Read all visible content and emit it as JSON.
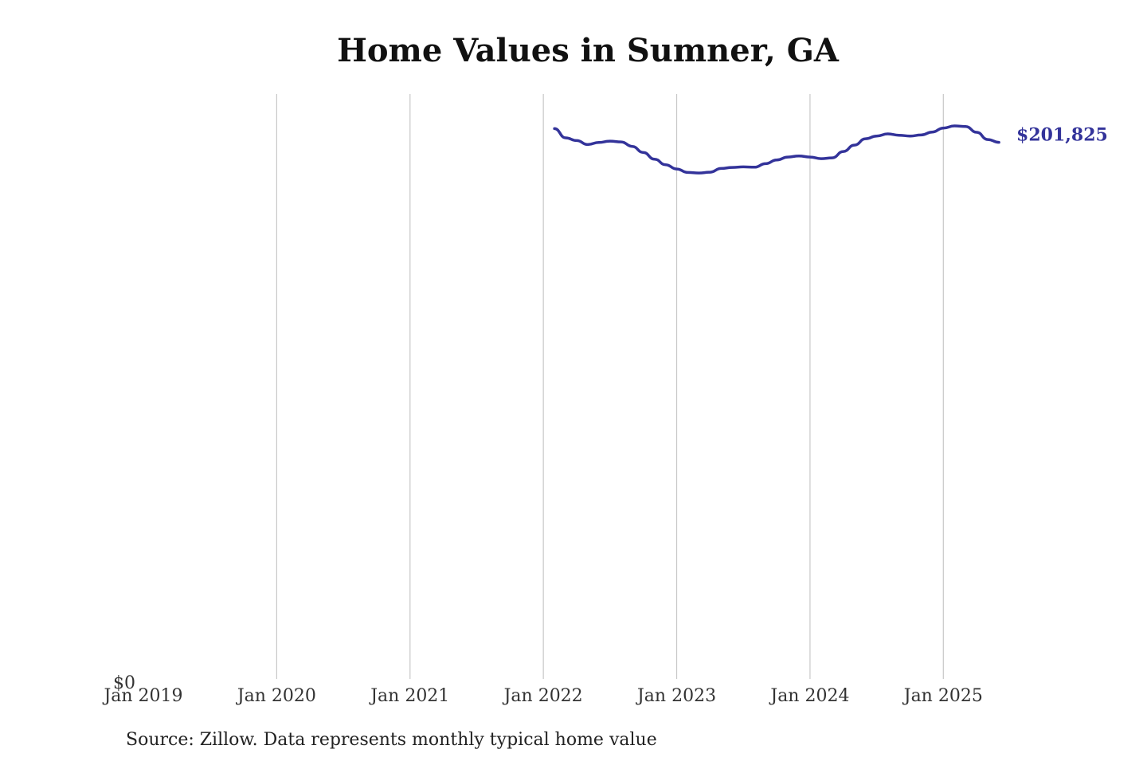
{
  "chart_data": {
    "type": "line",
    "title": "Home Values in Sumner, GA",
    "xlabel": "",
    "ylabel": "",
    "x_ticks": [
      "Jan 2019",
      "Jan 2020",
      "Jan 2021",
      "Jan 2022",
      "Jan 2023",
      "Jan 2024",
      "Jan 2025"
    ],
    "y_ticks": [
      "$0"
    ],
    "xlim": [
      "2019-01",
      "2025-07"
    ],
    "ylim": [
      0,
      220000
    ],
    "grid": "vertical",
    "end_label": "$201,825",
    "line_color": "#33339a",
    "series": [
      {
        "x": [
          "2022-02",
          "2022-03",
          "2022-04",
          "2022-05",
          "2022-06",
          "2022-07",
          "2022-08",
          "2022-09",
          "2022-10",
          "2022-11",
          "2022-12",
          "2023-01",
          "2023-02",
          "2023-03",
          "2023-04",
          "2023-05",
          "2023-06",
          "2023-07",
          "2023-08",
          "2023-09",
          "2023-10",
          "2023-11",
          "2023-12",
          "2024-01",
          "2024-02",
          "2024-03",
          "2024-04",
          "2024-05",
          "2024-06",
          "2024-07",
          "2024-08",
          "2024-09",
          "2024-10",
          "2024-11",
          "2024-12",
          "2025-01",
          "2025-02",
          "2025-03",
          "2025-04",
          "2025-05",
          "2025-06"
        ],
        "y": [
          207000,
          203500,
          202500,
          201000,
          201800,
          202300,
          202000,
          200300,
          198000,
          195500,
          193400,
          191800,
          190500,
          190300,
          190600,
          192000,
          192400,
          192600,
          192500,
          193800,
          195200,
          196300,
          196700,
          196300,
          195700,
          196000,
          198400,
          200800,
          203200,
          204200,
          205000,
          204500,
          204200,
          204600,
          205700,
          207200,
          208000,
          207800,
          205600,
          202900,
          201825
        ]
      }
    ]
  },
  "source": "Source: Zillow. Data represents monthly typical home value"
}
